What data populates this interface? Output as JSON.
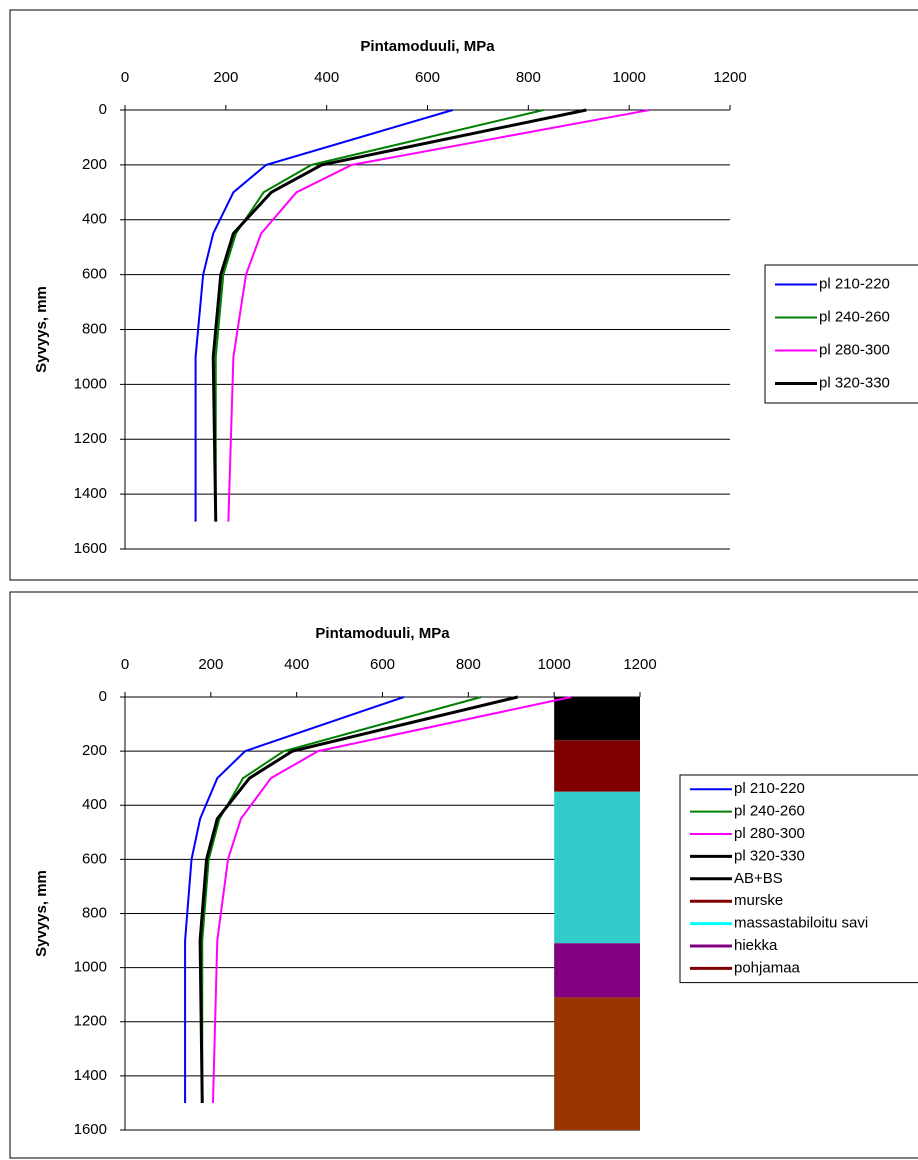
{
  "chart_data": [
    {
      "type": "line",
      "title": "Pintamoduuli, MPa",
      "y_label": "Syvyys, mm",
      "xlim": [
        0,
        1200
      ],
      "xticks": [
        0,
        200,
        400,
        600,
        800,
        1000,
        1200
      ],
      "ylim": [
        0,
        1600
      ],
      "yticks": [
        0,
        200,
        400,
        600,
        800,
        1000,
        1200,
        1400,
        1600
      ],
      "grid": true,
      "y": [
        0,
        200,
        300,
        450,
        600,
        900,
        1500
      ],
      "series": [
        {
          "name": "pl 210-220",
          "color": "#0000ff",
          "values": [
            650,
            280,
            215,
            175,
            155,
            140,
            140
          ]
        },
        {
          "name": "pl 240-260",
          "color": "#008000",
          "values": [
            830,
            370,
            275,
            220,
            195,
            180,
            180
          ]
        },
        {
          "name": "pl 280-300",
          "color": "#ff00ff",
          "values": [
            1040,
            450,
            340,
            270,
            240,
            215,
            205
          ]
        },
        {
          "name": "pl 320-330",
          "color": "#000000",
          "values": [
            915,
            390,
            290,
            215,
            190,
            175,
            180
          ]
        }
      ]
    },
    {
      "type": "line",
      "title": "Pintamoduuli, MPa",
      "y_label": "Syvyys, mm",
      "xlim": [
        0,
        1200
      ],
      "xticks": [
        0,
        200,
        400,
        600,
        800,
        1000,
        1200
      ],
      "ylim": [
        0,
        1600
      ],
      "yticks": [
        0,
        200,
        400,
        600,
        800,
        1000,
        1200,
        1400,
        1600
      ],
      "grid": true,
      "y": [
        0,
        200,
        300,
        450,
        600,
        900,
        1500
      ],
      "series": [
        {
          "name": "pl 210-220",
          "color": "#0000ff",
          "values": [
            650,
            280,
            215,
            175,
            155,
            140,
            140
          ]
        },
        {
          "name": "pl 240-260",
          "color": "#008000",
          "values": [
            830,
            370,
            275,
            220,
            195,
            180,
            180
          ]
        },
        {
          "name": "pl 280-300",
          "color": "#ff00ff",
          "values": [
            1040,
            450,
            340,
            270,
            240,
            215,
            205
          ]
        },
        {
          "name": "pl 320-330",
          "color": "#000000",
          "values": [
            915,
            390,
            290,
            215,
            190,
            175,
            180
          ]
        }
      ],
      "bar_xlim": [
        1000,
        1200
      ],
      "layers": [
        {
          "name": "AB+BS",
          "color": "#000000",
          "fill": "#000000",
          "values": [
            160
          ]
        },
        {
          "name": "murske",
          "color": "#800000",
          "fill": "#800000",
          "values": [
            190
          ]
        },
        {
          "name": "massastabiloitu savi",
          "color": "#00ffff",
          "fill": "#33cccc",
          "values": [
            560
          ]
        },
        {
          "name": "hiekka",
          "color": "#800080",
          "fill": "#800080",
          "values": [
            200
          ]
        },
        {
          "name": "pohjamaa",
          "color": "#800000",
          "fill": "#993300",
          "values": [
            490
          ]
        }
      ]
    }
  ]
}
